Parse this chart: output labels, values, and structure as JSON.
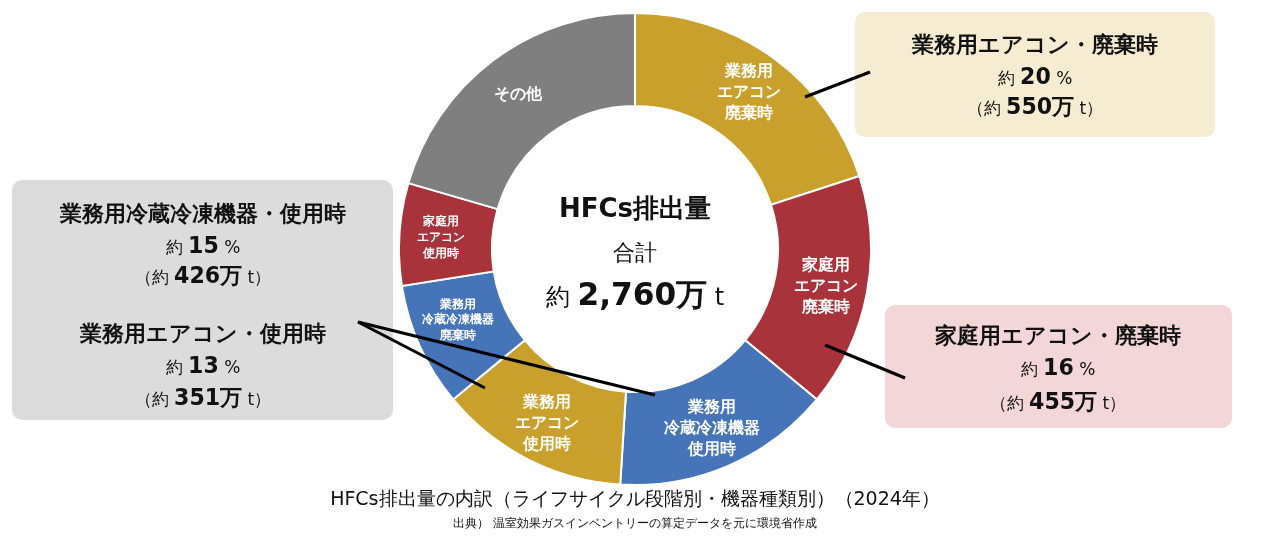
{
  "chart_data": {
    "type": "donut",
    "title": "HFCs排出量",
    "subtitle": "合計約 2,760万 t",
    "categories": [
      "業務用エアコン廃棄時",
      "家庭用エアコン廃棄時",
      "業務用冷蔵冷凍機器使用時",
      "業務用エアコン使用時",
      "業務用冷蔵冷凍機器廃棄時",
      "家庭用エアコン使用時",
      "その他"
    ],
    "values": [
      20,
      16,
      15,
      13,
      8.5,
      7,
      20.5
    ],
    "colors": [
      "#c9a02b",
      "#a8333a",
      "#4674b8",
      "#c9a02b",
      "#4674b8",
      "#a8333a",
      "#7f7f7f"
    ],
    "annotations": [
      "業務用エアコン・廃棄時約 20 %（約 550万 t）",
      "家庭用エアコン・廃棄時約 16 %（約 455万 t）",
      "業務用冷蔵冷凍機器・使用時約 15 %（約 426万 t）",
      "業務用エアコン・使用時約 13 %（約 351万 t）",
      "HFCs排出量の内訳（ライフサイクル段階別・機器種類別）（2024年）",
      "出典） 温室効果ガスインベントリーの算定データを元に環境省作成"
    ]
  }
}
